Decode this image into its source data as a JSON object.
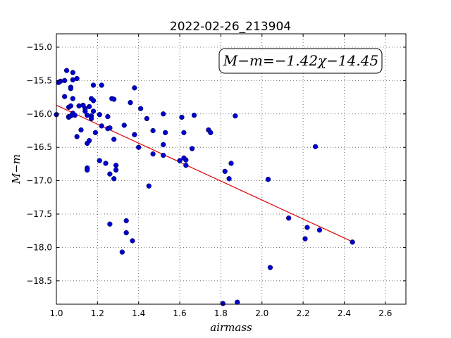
{
  "chart_data": {
    "type": "scatter",
    "title": "2022-02-26_213904",
    "xlabel": "airmass",
    "ylabel": "M−m",
    "xlim": [
      1.0,
      2.7
    ],
    "ylim": [
      -18.85,
      -14.8
    ],
    "y_inverted": true,
    "grid": true,
    "grid_style": "dotted",
    "xticks": [
      1.0,
      1.2,
      1.4,
      1.6,
      1.8,
      2.0,
      2.2,
      2.4,
      2.6
    ],
    "xtick_labels": [
      "1.0",
      "1.2",
      "1.4",
      "1.6",
      "1.8",
      "2.0",
      "2.2",
      "2.4",
      "2.6"
    ],
    "yticks": [
      -15.0,
      -15.5,
      -16.0,
      -16.5,
      -17.0,
      -17.5,
      -18.0,
      -18.5
    ],
    "ytick_labels": [
      "−15.0",
      "−15.5",
      "−16.0",
      "−16.5",
      "−17.0",
      "−17.5",
      "−18.0",
      "−18.5"
    ],
    "annotation": "M−m=−1.42χ−14.45",
    "annotation_position": "top-right",
    "points_color": "#0000cc",
    "fit_color": "#dd0000",
    "fit": {
      "slope": -1.42,
      "intercept": -14.45,
      "x_range": [
        1.0,
        2.44
      ]
    },
    "points": [
      [
        1.0,
        -16.01
      ],
      [
        1.01,
        -15.53
      ],
      [
        1.02,
        -15.51
      ],
      [
        1.04,
        -15.5
      ],
      [
        1.04,
        -15.74
      ],
      [
        1.05,
        -15.35
      ],
      [
        1.06,
        -15.9
      ],
      [
        1.06,
        -16.04
      ],
      [
        1.06,
        -16.05
      ],
      [
        1.07,
        -15.88
      ],
      [
        1.07,
        -15.6
      ],
      [
        1.07,
        -15.62
      ],
      [
        1.07,
        -16.03
      ],
      [
        1.08,
        -15.38
      ],
      [
        1.08,
        -15.49
      ],
      [
        1.08,
        -15.77
      ],
      [
        1.08,
        -15.99
      ],
      [
        1.09,
        -16.02
      ],
      [
        1.1,
        -15.47
      ],
      [
        1.1,
        -16.34
      ],
      [
        1.11,
        -15.88
      ],
      [
        1.12,
        -16.24
      ],
      [
        1.13,
        -15.87
      ],
      [
        1.14,
        -15.92
      ],
      [
        1.14,
        -15.96
      ],
      [
        1.15,
        -16.02
      ],
      [
        1.15,
        -16.81
      ],
      [
        1.15,
        -16.84
      ],
      [
        1.15,
        -16.44
      ],
      [
        1.16,
        -15.89
      ],
      [
        1.16,
        -16.4
      ],
      [
        1.17,
        -16.03
      ],
      [
        1.17,
        -16.07
      ],
      [
        1.17,
        -15.77
      ],
      [
        1.18,
        -15.57
      ],
      [
        1.18,
        -15.8
      ],
      [
        1.18,
        -15.96
      ],
      [
        1.19,
        -16.28
      ],
      [
        1.21,
        -16.01
      ],
      [
        1.21,
        -16.7
      ],
      [
        1.22,
        -15.57
      ],
      [
        1.22,
        -16.18
      ],
      [
        1.24,
        -16.74
      ],
      [
        1.25,
        -16.04
      ],
      [
        1.25,
        -16.22
      ],
      [
        1.26,
        -16.21
      ],
      [
        1.26,
        -16.9
      ],
      [
        1.26,
        -17.65
      ],
      [
        1.27,
        -15.77
      ],
      [
        1.28,
        -15.78
      ],
      [
        1.28,
        -16.38
      ],
      [
        1.28,
        -16.97
      ],
      [
        1.29,
        -16.77
      ],
      [
        1.29,
        -16.84
      ],
      [
        1.32,
        -18.07
      ],
      [
        1.33,
        -16.17
      ],
      [
        1.34,
        -17.6
      ],
      [
        1.34,
        -17.78
      ],
      [
        1.36,
        -15.83
      ],
      [
        1.37,
        -17.9
      ],
      [
        1.38,
        -15.61
      ],
      [
        1.38,
        -16.31
      ],
      [
        1.4,
        -16.5
      ],
      [
        1.41,
        -15.92
      ],
      [
        1.44,
        -16.07
      ],
      [
        1.45,
        -17.08
      ],
      [
        1.47,
        -16.25
      ],
      [
        1.47,
        -16.6
      ],
      [
        1.52,
        -16.0
      ],
      [
        1.52,
        -16.46
      ],
      [
        1.52,
        -16.62
      ],
      [
        1.53,
        -16.28
      ],
      [
        1.6,
        -16.7
      ],
      [
        1.61,
        -16.05
      ],
      [
        1.62,
        -16.66
      ],
      [
        1.62,
        -16.28
      ],
      [
        1.63,
        -16.69
      ],
      [
        1.63,
        -16.77
      ],
      [
        1.66,
        -16.52
      ],
      [
        1.67,
        -16.02
      ],
      [
        1.74,
        -16.24
      ],
      [
        1.75,
        -16.28
      ],
      [
        1.81,
        -18.84
      ],
      [
        1.82,
        -16.86
      ],
      [
        1.84,
        -16.97
      ],
      [
        1.85,
        -16.74
      ],
      [
        1.87,
        -16.03
      ],
      [
        1.88,
        -18.82
      ],
      [
        2.03,
        -16.98
      ],
      [
        2.04,
        -18.3
      ],
      [
        2.13,
        -17.56
      ],
      [
        2.21,
        -17.87
      ],
      [
        2.22,
        -17.7
      ],
      [
        2.26,
        -16.49
      ],
      [
        2.28,
        -17.74
      ],
      [
        2.44,
        -17.92
      ]
    ]
  }
}
